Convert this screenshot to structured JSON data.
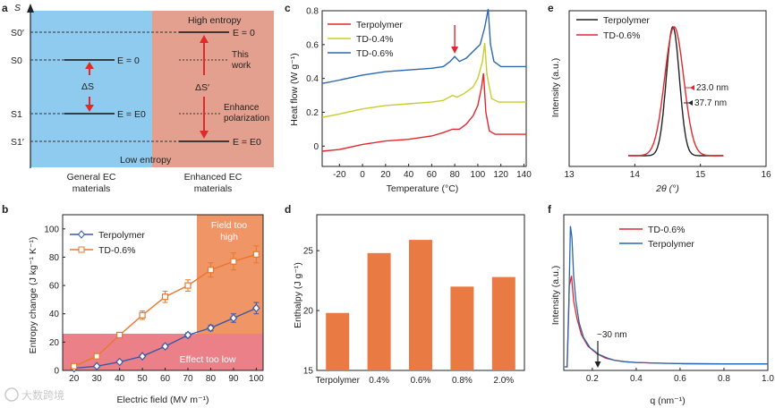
{
  "panels": {
    "a": {
      "label": "a",
      "axis_label": "S",
      "levels": [
        "S0′",
        "S0",
        "S1",
        "S1′"
      ],
      "high_entropy": "High entropy",
      "low_entropy": "Low entropy",
      "left_e0": "E = 0",
      "left_ee0": "E = E0",
      "delta_s": "ΔS",
      "right_e0": "E = 0",
      "right_ee0": "E = E0",
      "delta_s_prime": "ΔS′",
      "this_work_1": "This",
      "this_work_2": "work",
      "enhance_1": "Enhance",
      "enhance_2": "polarization",
      "general_1": "General EC",
      "general_2": "materials",
      "enhanced_1": "Enhanced EC",
      "enhanced_2": "materials",
      "colors": {
        "left": "#8ecbee",
        "right": "#e3a08e"
      }
    },
    "b": {
      "label": "b",
      "field_high_1": "Field too",
      "field_high_2": "high",
      "effect_low": "Effect too low",
      "colors": {
        "high_zone": "#ee8a55",
        "low_zone": "#e9727b"
      }
    },
    "c": {
      "label": "c"
    },
    "d": {
      "label": "d"
    },
    "e": {
      "label": "e",
      "ann_1": "23.0 nm",
      "ann_2": "37.7 nm"
    },
    "f": {
      "label": "f",
      "ann": "~30 nm"
    }
  },
  "watermark": "大数跨境",
  "chart_data": [
    {
      "id": "b",
      "type": "line",
      "xlabel": "Electric field (MV m⁻¹)",
      "ylabel": "Entropy change (J kg⁻¹ K⁻¹)",
      "xlim": [
        15,
        103
      ],
      "ylim": [
        0,
        110
      ],
      "xticks": [
        20,
        30,
        40,
        50,
        60,
        70,
        80,
        90,
        100
      ],
      "yticks": [
        0,
        20,
        40,
        60,
        80,
        100
      ],
      "legend": "top-left",
      "series": [
        {
          "name": "Terpolymer",
          "color": "#3b58a4",
          "marker": "diamond",
          "x": [
            20,
            30,
            40,
            50,
            60,
            70,
            80,
            90,
            100
          ],
          "y": [
            1.5,
            3,
            6,
            10,
            17,
            25,
            30,
            37,
            44
          ],
          "err": [
            0,
            0.5,
            0.8,
            1,
            1.2,
            1.5,
            2,
            3,
            4
          ]
        },
        {
          "name": "TD-0.6%",
          "color": "#e8772e",
          "marker": "square",
          "x": [
            20,
            30,
            40,
            50,
            60,
            70,
            80,
            90,
            100
          ],
          "y": [
            3,
            10,
            25,
            39,
            52,
            60,
            71,
            77,
            82
          ],
          "err": [
            1,
            1,
            1.5,
            3,
            4,
            4,
            5,
            6,
            6
          ]
        }
      ]
    },
    {
      "id": "c",
      "type": "line",
      "xlabel": "Temperature (°C)",
      "ylabel": "Heat flow (W g⁻¹)",
      "xlim": [
        -35,
        142
      ],
      "ylim": [
        -0.12,
        0.8
      ],
      "xticks": [
        -20,
        0,
        20,
        40,
        60,
        80,
        100,
        120,
        140
      ],
      "yticks": [
        0,
        0.2,
        0.4,
        0.6,
        0.8
      ],
      "legend": "top-left",
      "series": [
        {
          "name": "Terpolymer",
          "color": "#e0282e",
          "x": [
            -35,
            -20,
            0,
            20,
            40,
            60,
            70,
            78,
            84,
            90,
            96,
            100,
            103,
            105,
            107,
            110,
            115,
            125,
            142
          ],
          "y": [
            -0.03,
            -0.02,
            0.01,
            0.03,
            0.04,
            0.06,
            0.08,
            0.1,
            0.1,
            0.13,
            0.18,
            0.24,
            0.34,
            0.43,
            0.2,
            0.09,
            0.07,
            0.07,
            0.07
          ]
        },
        {
          "name": "TD-0.4%",
          "color": "#c9cc2f",
          "x": [
            -35,
            -20,
            0,
            20,
            40,
            60,
            70,
            78,
            82,
            88,
            96,
            100,
            104,
            106,
            108,
            112,
            118,
            128,
            142
          ],
          "y": [
            0.17,
            0.19,
            0.22,
            0.24,
            0.25,
            0.26,
            0.27,
            0.3,
            0.29,
            0.31,
            0.35,
            0.4,
            0.5,
            0.61,
            0.42,
            0.28,
            0.26,
            0.26,
            0.26
          ]
        },
        {
          "name": "TD-0.6%",
          "color": "#2a68b0",
          "x": [
            -35,
            -20,
            0,
            20,
            40,
            60,
            70,
            76,
            80,
            84,
            90,
            96,
            102,
            106,
            109,
            111,
            114,
            120,
            130,
            142
          ],
          "y": [
            0.37,
            0.39,
            0.42,
            0.44,
            0.45,
            0.46,
            0.47,
            0.5,
            0.53,
            0.5,
            0.52,
            0.56,
            0.6,
            0.7,
            0.81,
            0.6,
            0.5,
            0.47,
            0.47,
            0.47
          ]
        }
      ],
      "arrow_x": 80
    },
    {
      "id": "d",
      "type": "bar",
      "ylabel": "Enthalpy (J g⁻¹)",
      "ylim": [
        15,
        28
      ],
      "yticks": [
        15,
        20,
        25
      ],
      "categories": [
        "Terpolymer",
        "0.4%",
        "0.6%",
        "0.8%",
        "2.0%"
      ],
      "values": [
        19.8,
        24.8,
        25.9,
        22.0,
        22.8
      ],
      "color": "#ea7a44"
    },
    {
      "id": "e",
      "type": "line",
      "xlabel": "2θ (°)",
      "ylabel": "Intensity (a.u.)",
      "xlim": [
        13,
        16
      ],
      "xticks": [
        13,
        14,
        15,
        16
      ],
      "legend": "top-left",
      "series": [
        {
          "name": "Terpolymer",
          "color": "#222222",
          "center": 14.58,
          "sigma": 0.1
        },
        {
          "name": "TD-0.6%",
          "color": "#e0282e",
          "center": 14.6,
          "sigma": 0.145
        }
      ]
    },
    {
      "id": "f",
      "type": "line",
      "xlabel": "q (nm⁻¹)",
      "ylabel": "Intensity (a.u.)",
      "xlim": [
        0.07,
        1.0
      ],
      "xticks": [
        0.2,
        0.4,
        0.6,
        0.8,
        1.0
      ],
      "legend": "top-right",
      "series": [
        {
          "name": "TD-0.6%",
          "color": "#e0282e",
          "x": [
            0.075,
            0.085,
            0.095,
            0.105,
            0.115,
            0.13,
            0.15,
            0.18,
            0.22,
            0.26,
            0.3,
            0.35,
            0.4,
            0.5,
            0.6,
            0.8,
            1.0
          ],
          "y": [
            0.0,
            0.0,
            0.55,
            0.62,
            0.45,
            0.33,
            0.22,
            0.14,
            0.09,
            0.06,
            0.045,
            0.035,
            0.03,
            0.025,
            0.022,
            0.02,
            0.02
          ]
        },
        {
          "name": "Terpolymer",
          "color": "#2a68b0",
          "x": [
            0.075,
            0.085,
            0.092,
            0.1,
            0.107,
            0.115,
            0.125,
            0.14,
            0.16,
            0.19,
            0.23,
            0.27,
            0.3,
            0.35,
            0.4,
            0.5,
            0.6,
            0.8,
            1.0
          ],
          "y": [
            0.0,
            0.0,
            0.35,
            0.96,
            0.88,
            0.62,
            0.45,
            0.3,
            0.2,
            0.13,
            0.085,
            0.06,
            0.045,
            0.035,
            0.03,
            0.025,
            0.022,
            0.02,
            0.02
          ]
        }
      ],
      "arrow_x": 0.225
    }
  ]
}
